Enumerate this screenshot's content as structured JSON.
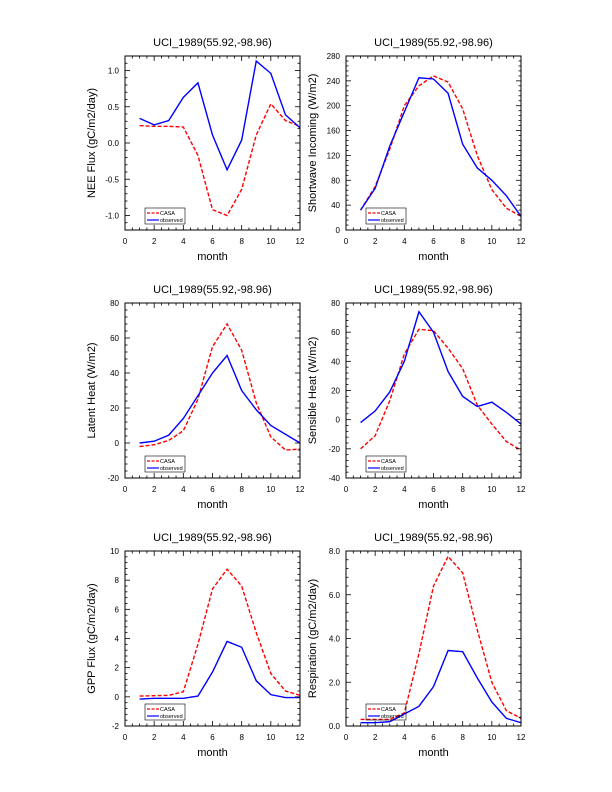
{
  "series_styles": {
    "CASA": {
      "color": "#ff0000",
      "dash": "dashed"
    },
    "observed": {
      "color": "#0000ff",
      "dash": "solid"
    }
  },
  "chart_data": [
    {
      "type": "line",
      "title": "UCI_1989(55.92,-98.96)",
      "xlabel": "month",
      "ylabel": "NEE Flux (gC/m2/day)",
      "xlim": [
        0,
        12
      ],
      "ylim": [
        -1.2,
        1.2
      ],
      "xticks": [
        "0",
        "2",
        "4",
        "6",
        "8",
        "10",
        "12"
      ],
      "xtick_values": [
        0,
        2,
        4,
        6,
        8,
        10,
        12
      ],
      "yticks": [
        "-1.0",
        "-0.5",
        "0.0",
        "0.5",
        "1.0"
      ],
      "ytick_values": [
        -1.0,
        -0.5,
        0.0,
        0.5,
        1.0
      ],
      "legend": [
        "CASA",
        "observed"
      ],
      "legend_position": "bottom-left",
      "x": [
        1,
        2,
        3,
        4,
        5,
        6,
        7,
        8,
        9,
        10,
        11,
        12
      ],
      "series": [
        {
          "name": "CASA",
          "values": [
            0.24,
            0.23,
            0.23,
            0.22,
            -0.17,
            -0.92,
            -1.0,
            -0.64,
            0.11,
            0.54,
            0.31,
            0.23
          ]
        },
        {
          "name": "observed",
          "values": [
            0.34,
            0.25,
            0.31,
            0.63,
            0.83,
            0.11,
            -0.37,
            0.04,
            1.13,
            0.96,
            0.39,
            0.21
          ]
        }
      ]
    },
    {
      "type": "line",
      "title": "UCI_1989(55.92,-98.96)",
      "xlabel": "month",
      "ylabel": "Shortwave Incoming (W/m2)",
      "xlim": [
        0,
        12
      ],
      "ylim": [
        0,
        280
      ],
      "xticks": [
        "0",
        "2",
        "4",
        "6",
        "8",
        "10",
        "12"
      ],
      "xtick_values": [
        0,
        2,
        4,
        6,
        8,
        10,
        12
      ],
      "yticks": [
        "0",
        "40",
        "80",
        "120",
        "160",
        "200",
        "240",
        "280"
      ],
      "ytick_values": [
        0,
        40,
        80,
        120,
        160,
        200,
        240,
        280
      ],
      "legend": [
        "CASA",
        "observed"
      ],
      "legend_position": "bottom-left",
      "x": [
        1,
        2,
        3,
        4,
        5,
        6,
        7,
        8,
        9,
        10,
        11,
        12
      ],
      "series": [
        {
          "name": "CASA",
          "values": [
            32,
            70,
            130,
            200,
            232,
            248,
            238,
            195,
            120,
            65,
            35,
            22
          ]
        },
        {
          "name": "observed",
          "values": [
            32,
            67,
            135,
            190,
            245,
            243,
            220,
            138,
            100,
            80,
            55,
            22
          ]
        }
      ]
    },
    {
      "type": "line",
      "title": "UCI_1989(55.92,-98.96)",
      "xlabel": "month",
      "ylabel": "Latent Heat (W/m2)",
      "xlim": [
        0,
        12
      ],
      "ylim": [
        -20,
        80
      ],
      "xticks": [
        "0",
        "2",
        "4",
        "6",
        "8",
        "10",
        "12"
      ],
      "xtick_values": [
        0,
        2,
        4,
        6,
        8,
        10,
        12
      ],
      "yticks": [
        "-20",
        "0",
        "20",
        "40",
        "60",
        "80"
      ],
      "ytick_values": [
        -20,
        0,
        20,
        40,
        60,
        80
      ],
      "legend": [
        "CASA",
        "observed"
      ],
      "legend_position": "bottom-left",
      "x": [
        1,
        2,
        3,
        4,
        5,
        6,
        7,
        8,
        9,
        10,
        11,
        12
      ],
      "series": [
        {
          "name": "CASA",
          "values": [
            -2,
            -1,
            1.5,
            7,
            25,
            55,
            68,
            53,
            23,
            3.5,
            -4,
            -3.5
          ]
        },
        {
          "name": "observed",
          "values": [
            0,
            1,
            4.5,
            14,
            27,
            40,
            50,
            30,
            19,
            10,
            5,
            0
          ]
        }
      ]
    },
    {
      "type": "line",
      "title": "UCI_1989(55.92,-98.96)",
      "xlabel": "month",
      "ylabel": "Sensible Heat (W/m2)",
      "xlim": [
        0,
        12
      ],
      "ylim": [
        -40,
        80
      ],
      "xticks": [
        "0",
        "2",
        "4",
        "6",
        "8",
        "10",
        "12"
      ],
      "xtick_values": [
        0,
        2,
        4,
        6,
        8,
        10,
        12
      ],
      "yticks": [
        "-40",
        "-20",
        "0",
        "20",
        "40",
        "60",
        "80"
      ],
      "ytick_values": [
        -40,
        -20,
        0,
        20,
        40,
        60,
        80
      ],
      "legend": [
        "CASA",
        "observed"
      ],
      "legend_position": "bottom-left",
      "x": [
        1,
        2,
        3,
        4,
        5,
        6,
        7,
        8,
        9,
        10,
        11,
        12
      ],
      "series": [
        {
          "name": "CASA",
          "values": [
            -20,
            -11,
            13,
            45,
            62,
            61,
            49,
            35,
            10,
            -3,
            -15,
            -21
          ]
        },
        {
          "name": "observed",
          "values": [
            -2,
            6,
            19,
            40,
            74,
            60,
            33,
            16,
            9,
            12,
            5,
            -3
          ]
        }
      ]
    },
    {
      "type": "line",
      "title": "UCI_1989(55.92,-98.96)",
      "xlabel": "month",
      "ylabel": "GPP Flux (gC/m2/day)",
      "xlim": [
        0,
        12
      ],
      "ylim": [
        -2,
        10
      ],
      "xticks": [
        "0",
        "2",
        "4",
        "6",
        "8",
        "10",
        "12"
      ],
      "xtick_values": [
        0,
        2,
        4,
        6,
        8,
        10,
        12
      ],
      "yticks": [
        "-2",
        "0",
        "2",
        "4",
        "6",
        "8",
        "10"
      ],
      "ytick_values": [
        -2,
        0,
        2,
        4,
        6,
        8,
        10
      ],
      "legend": [
        "CASA",
        "observed"
      ],
      "legend_position": "bottom-left",
      "x": [
        1,
        2,
        3,
        4,
        5,
        6,
        7,
        8,
        9,
        10,
        11,
        12
      ],
      "series": [
        {
          "name": "CASA",
          "values": [
            0.05,
            0.08,
            0.1,
            0.35,
            3.6,
            7.4,
            8.75,
            7.6,
            4.4,
            1.6,
            0.4,
            0.1
          ]
        },
        {
          "name": "observed",
          "values": [
            -0.15,
            -0.1,
            -0.1,
            -0.1,
            0.05,
            1.7,
            3.8,
            3.4,
            1.1,
            0.15,
            -0.05,
            -0.05
          ]
        }
      ]
    },
    {
      "type": "line",
      "title": "UCI_1989(55.92,-98.96)",
      "xlabel": "month",
      "ylabel": "Respiration (gC/m2/day)",
      "xlim": [
        0,
        12
      ],
      "ylim": [
        0,
        8
      ],
      "xticks": [
        "0",
        "2",
        "4",
        "6",
        "8",
        "10",
        "12"
      ],
      "xtick_values": [
        0,
        2,
        4,
        6,
        8,
        10,
        12
      ],
      "yticks": [
        "0.0",
        "2.0",
        "4.0",
        "6.0",
        "8.0"
      ],
      "ytick_values": [
        0,
        2,
        4,
        6,
        8
      ],
      "legend": [
        "CASA",
        "observed"
      ],
      "legend_position": "bottom-left",
      "x": [
        1,
        2,
        3,
        4,
        5,
        6,
        7,
        8,
        9,
        10,
        11,
        12
      ],
      "series": [
        {
          "name": "CASA",
          "values": [
            0.3,
            0.3,
            0.3,
            0.6,
            3.3,
            6.4,
            7.75,
            7.0,
            4.4,
            2.0,
            0.7,
            0.35
          ]
        },
        {
          "name": "observed",
          "values": [
            0.15,
            0.15,
            0.2,
            0.55,
            0.9,
            1.8,
            3.45,
            3.4,
            2.2,
            1.1,
            0.35,
            0.15
          ]
        }
      ]
    }
  ]
}
